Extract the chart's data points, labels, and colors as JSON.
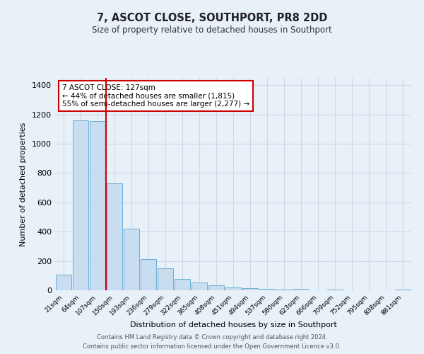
{
  "title": "7, ASCOT CLOSE, SOUTHPORT, PR8 2DD",
  "subtitle": "Size of property relative to detached houses in Southport",
  "xlabel": "Distribution of detached houses by size in Southport",
  "ylabel": "Number of detached properties",
  "bin_labels": [
    "21sqm",
    "64sqm",
    "107sqm",
    "150sqm",
    "193sqm",
    "236sqm",
    "279sqm",
    "322sqm",
    "365sqm",
    "408sqm",
    "451sqm",
    "494sqm",
    "537sqm",
    "580sqm",
    "623sqm",
    "666sqm",
    "709sqm",
    "752sqm",
    "795sqm",
    "838sqm",
    "881sqm"
  ],
  "bar_values": [
    105,
    1160,
    1155,
    730,
    420,
    215,
    150,
    75,
    55,
    35,
    20,
    15,
    10,
    5,
    8,
    0,
    5,
    0,
    0,
    0,
    5
  ],
  "bar_color": "#c9ddf0",
  "bar_edge_color": "#6baed6",
  "red_line_index": 2,
  "red_line_color": "#cc0000",
  "annotation_title": "7 ASCOT CLOSE: 127sqm",
  "annotation_line1": "← 44% of detached houses are smaller (1,815)",
  "annotation_line2": "55% of semi-detached houses are larger (2,277) →",
  "annotation_box_color": "#ffffff",
  "annotation_box_edge": "#cc0000",
  "ylim": [
    0,
    1450
  ],
  "yticks": [
    0,
    200,
    400,
    600,
    800,
    1000,
    1200,
    1400
  ],
  "bg_color": "#e8f0f8",
  "grid_color": "#d0d8e8",
  "footer1": "Contains HM Land Registry data © Crown copyright and database right 2024.",
  "footer2": "Contains public sector information licensed under the Open Government Licence v3.0."
}
